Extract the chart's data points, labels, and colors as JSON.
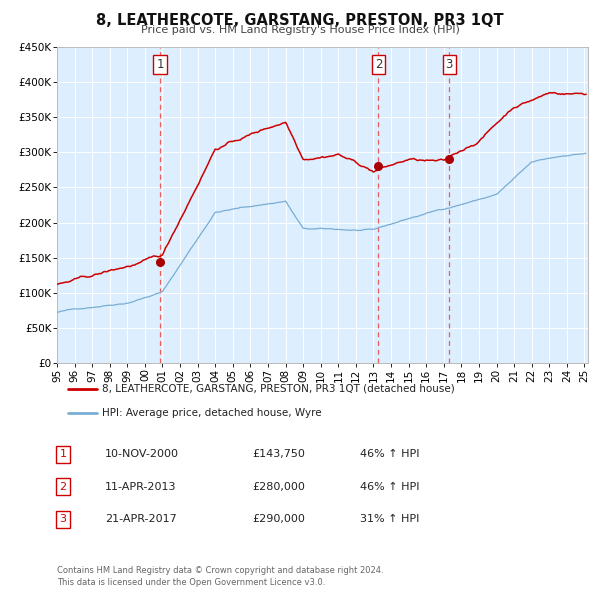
{
  "title": "8, LEATHERCOTE, GARSTANG, PRESTON, PR3 1QT",
  "subtitle": "Price paid vs. HM Land Registry's House Price Index (HPI)",
  "legend_property": "8, LEATHERCOTE, GARSTANG, PRESTON, PR3 1QT (detached house)",
  "legend_hpi": "HPI: Average price, detached house, Wyre",
  "property_color": "#cc0000",
  "hpi_color": "#7aadd4",
  "background_color": "#ddeeff",
  "sale_points": [
    {
      "label": "1",
      "date_str": "10-NOV-2000",
      "date_x": 2000.86,
      "price": 143750,
      "pct": "46%",
      "direction": "↑"
    },
    {
      "label": "2",
      "date_str": "11-APR-2013",
      "date_x": 2013.28,
      "price": 280000,
      "pct": "46%",
      "direction": "↑"
    },
    {
      "label": "3",
      "date_str": "21-APR-2017",
      "date_x": 2017.31,
      "price": 290000,
      "pct": "31%",
      "direction": "↑"
    }
  ],
  "vline_color": "#ee4444",
  "marker_color": "#aa0000",
  "ylim": [
    0,
    450000
  ],
  "xlim": [
    1995.0,
    2025.2
  ],
  "ytick_values": [
    0,
    50000,
    100000,
    150000,
    200000,
    250000,
    300000,
    350000,
    400000,
    450000
  ],
  "ytick_labels": [
    "£0",
    "£50K",
    "£100K",
    "£150K",
    "£200K",
    "£250K",
    "£300K",
    "£350K",
    "£400K",
    "£450K"
  ],
  "xtick_years": [
    1995,
    1996,
    1997,
    1998,
    1999,
    2000,
    2001,
    2002,
    2003,
    2004,
    2005,
    2006,
    2007,
    2008,
    2009,
    2010,
    2011,
    2012,
    2013,
    2014,
    2015,
    2016,
    2017,
    2018,
    2019,
    2020,
    2021,
    2022,
    2023,
    2024,
    2025
  ],
  "footnote": "Contains HM Land Registry data © Crown copyright and database right 2024.\nThis data is licensed under the Open Government Licence v3.0.",
  "sale_box_color": "#cc0000"
}
